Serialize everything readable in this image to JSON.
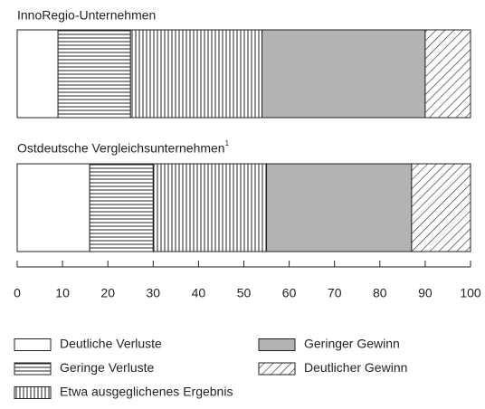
{
  "chart_data": {
    "type": "stacked_barh",
    "categories": [
      "InnoRegio-Unternehmen",
      "Ostdeutsche Vergleichsunternehmen"
    ],
    "category_footnotes": [
      null,
      "1"
    ],
    "series": [
      {
        "name": "Deutliche Verluste",
        "color": "#ffffff",
        "pattern": "none",
        "values": [
          9,
          16
        ]
      },
      {
        "name": "Geringe Verluste",
        "color": "#ffffff",
        "pattern": "horizontal",
        "values": [
          16,
          14
        ]
      },
      {
        "name": "Etwa ausgeglichenes Ergebnis",
        "color": "#ffffff",
        "pattern": "vertical",
        "values": [
          29,
          25
        ]
      },
      {
        "name": "Geringer Gewinn",
        "color": "#b3b3b3",
        "pattern": "none",
        "values": [
          36,
          32
        ]
      },
      {
        "name": "Deutlicher Gewinn",
        "color": "#ffffff",
        "pattern": "diagonal",
        "values": [
          10,
          13
        ]
      }
    ],
    "xlim": [
      0,
      100
    ],
    "xticks": [
      0,
      10,
      20,
      30,
      40,
      50,
      60,
      70,
      80,
      90,
      100
    ]
  }
}
